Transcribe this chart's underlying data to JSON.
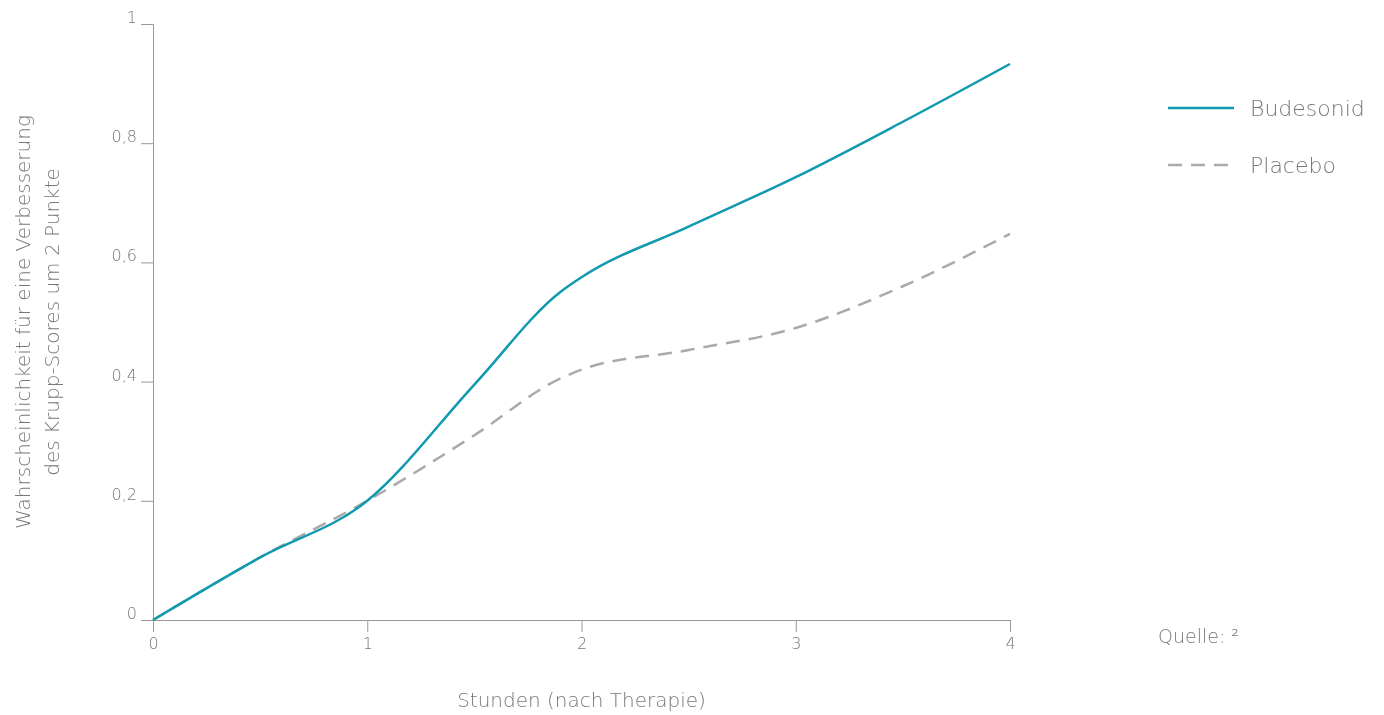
{
  "chart_data": {
    "type": "line",
    "xlabel": "Stunden (nach Therapie)",
    "ylabel": "Wahrscheinlichkeit für eine Verbesserung\ndes Krupp-Scores um 2 Punkte",
    "x": [
      0,
      0.5,
      1,
      1.5,
      1.9,
      2,
      2.5,
      3,
      3.5,
      4
    ],
    "series": [
      {
        "name": "Budesonid",
        "color": "#1199b0",
        "line_style": "solid",
        "values": [
          0,
          0.105,
          0.2,
          0.395,
          0.55,
          0.575,
          0.66,
          0.743,
          0.836,
          0.933
        ]
      },
      {
        "name": "Placebo",
        "color": "#aaaaaa",
        "line_style": "dashed",
        "values": [
          0,
          0.105,
          0.2,
          0.31,
          0.405,
          0.42,
          0.453,
          0.49,
          0.56,
          0.648
        ]
      }
    ],
    "xlim": [
      0,
      4
    ],
    "ylim": [
      0,
      1
    ],
    "xticks": [
      0,
      1,
      2,
      3,
      4
    ],
    "yticks": [
      0,
      {
        "value": 0.2,
        "label": "0,2"
      },
      {
        "value": 0.4,
        "label": "0,4"
      },
      {
        "value": 0.6,
        "label": "0,6"
      },
      {
        "value": 0.8,
        "label": "0,8"
      },
      1
    ],
    "grid": false,
    "legend": "top right",
    "annotations": [
      "Quelle: ²"
    ]
  }
}
